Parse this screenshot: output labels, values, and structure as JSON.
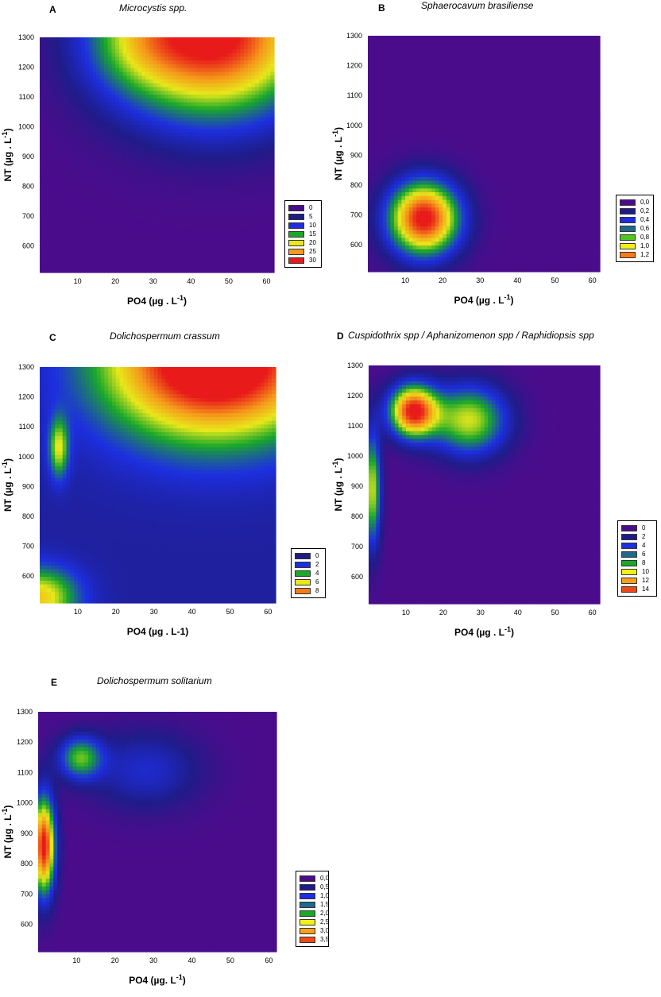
{
  "chart_data": [
    {
      "id": "A",
      "type": "heatmap",
      "letter": "A",
      "title": "Microcystis spp.",
      "xlabel": "PO4 (µg . L",
      "xlabel_sup": "-1",
      "xlabel_tail": ")",
      "ylabel": "NT (µg . L",
      "ylabel_sup": "-1",
      "ylabel_tail": ")",
      "xlim": [
        0,
        62
      ],
      "ylim": [
        510,
        1300
      ],
      "xticks": [
        "10",
        "20",
        "30",
        "40",
        "50",
        "60"
      ],
      "yticks": [
        "600",
        "700",
        "800",
        "900",
        "1000",
        "1100",
        "1200",
        "1300"
      ],
      "vmax": 30,
      "legend": [
        "0",
        "5",
        "10",
        "15",
        "20",
        "25",
        "30"
      ],
      "legend_colors": [
        "#4b0c8c",
        "#1f1c8a",
        "#1d2fe0",
        "#1aa82a",
        "#e8e81a",
        "#f59a1a",
        "#e81a1a"
      ],
      "hotspots": [
        {
          "x": 46,
          "y": 1310,
          "sx": 18,
          "sy": 190,
          "amp": 32
        },
        {
          "x": 25,
          "y": 1290,
          "sx": 10,
          "sy": 120,
          "amp": 6
        }
      ]
    },
    {
      "id": "B",
      "type": "heatmap",
      "letter": "B",
      "title": "Sphaerocavum brasiliense",
      "xlabel": "PO4 (µg . L",
      "xlabel_sup": "-1",
      "xlabel_tail": ")",
      "ylabel": "NT (µg . L",
      "ylabel_sup": "-1",
      "ylabel_tail": ")",
      "xlim": [
        0,
        62
      ],
      "ylim": [
        510,
        1300
      ],
      "xticks": [
        "10",
        "20",
        "30",
        "40",
        "50",
        "60"
      ],
      "yticks": [
        "600",
        "700",
        "800",
        "900",
        "1000",
        "1100",
        "1200",
        "1300"
      ],
      "vmax": 1.3,
      "legend": [
        "0,0",
        "0,2",
        "0,4",
        "0,6",
        "0,8",
        "1,0",
        "1,2"
      ],
      "legend_colors": [
        "#4b0c8c",
        "#1f1c8a",
        "#1d2fe0",
        "#1f6a8a",
        "#4bc81a",
        "#f0f01a",
        "#f57a1a"
      ],
      "hotspots": [
        {
          "x": 15,
          "y": 690,
          "sx": 6.5,
          "sy": 85,
          "amp": 1.35
        }
      ]
    },
    {
      "id": "C",
      "type": "heatmap",
      "letter": "C",
      "title": "Dolichospermum crassum",
      "xlabel": "PO4 (µg . L-1)",
      "xlabel_sup": "",
      "xlabel_tail": "",
      "ylabel": "NT (µg . L",
      "ylabel_sup": "-1",
      "ylabel_tail": ")",
      "xlim": [
        0,
        62
      ],
      "ylim": [
        510,
        1300
      ],
      "xticks": [
        "10",
        "20",
        "30",
        "40",
        "50",
        "60"
      ],
      "yticks": [
        "600",
        "700",
        "800",
        "900",
        "1000",
        "1100",
        "1200",
        "1300"
      ],
      "vmax": 9,
      "legend": [
        "0",
        "2",
        "4",
        "6",
        "8"
      ],
      "legend_colors": [
        "#1f1c8a",
        "#1d2fe0",
        "#1aa82a",
        "#e8e81a",
        "#f57a1a"
      ],
      "base": 1.2,
      "hotspots": [
        {
          "x": 46,
          "y": 1320,
          "sx": 20,
          "sy": 180,
          "amp": 10
        },
        {
          "x": 5,
          "y": 1030,
          "sx": 1.8,
          "sy": 70,
          "amp": 4.2
        },
        {
          "x": 0,
          "y": 530,
          "sx": 7,
          "sy": 70,
          "amp": 5
        }
      ]
    },
    {
      "id": "D",
      "type": "heatmap",
      "letter": "D",
      "title": "Cuspidothrix spp / Aphanizomenon spp / Raphidiopsis spp",
      "xlabel": "PO4 (µg . L",
      "xlabel_sup": "-1",
      "xlabel_tail": ")",
      "ylabel": "NT (µg . L",
      "ylabel_sup": "-1",
      "ylabel_tail": ")",
      "xlim": [
        0,
        62
      ],
      "ylim": [
        510,
        1300
      ],
      "xticks": [
        "10",
        "20",
        "30",
        "40",
        "50",
        "60"
      ],
      "yticks": [
        "600",
        "700",
        "800",
        "900",
        "1000",
        "1100",
        "1200",
        "1300"
      ],
      "vmax": 15,
      "legend": [
        "0",
        "2",
        "4",
        "6",
        "8",
        "10",
        "12",
        "14"
      ],
      "legend_colors": [
        "#4b0c8c",
        "#1f1c8a",
        "#1d2fe0",
        "#1f6a8a",
        "#1aa82a",
        "#f0f01a",
        "#f5a01a",
        "#f04a1a"
      ],
      "hotspots": [
        {
          "x": 12,
          "y": 1150,
          "sx": 4.5,
          "sy": 60,
          "amp": 15
        },
        {
          "x": 27,
          "y": 1120,
          "sx": 7,
          "sy": 80,
          "amp": 9
        },
        {
          "x": 1,
          "y": 890,
          "sx": 1.6,
          "sy": 130,
          "amp": 9
        }
      ]
    },
    {
      "id": "E",
      "type": "heatmap",
      "letter": "E",
      "title": "Dolichospermum solitarium",
      "xlabel": "PO4 (µg. L",
      "xlabel_sup": "-1",
      "xlabel_tail": ")",
      "ylabel": "NT (µg . L",
      "ylabel_sup": "-1",
      "ylabel_tail": ")",
      "xlim": [
        0,
        62
      ],
      "ylim": [
        510,
        1300
      ],
      "xticks": [
        "10",
        "20",
        "30",
        "40",
        "50",
        "60"
      ],
      "yticks": [
        "600",
        "700",
        "800",
        "900",
        "1000",
        "1100",
        "1200",
        "1300"
      ],
      "vmax": 3.8,
      "legend": [
        "0,0",
        "0,5",
        "1,0",
        "1,5",
        "2,0",
        "2,5",
        "3,0",
        "3,5"
      ],
      "legend_colors": [
        "#4b0c8c",
        "#1f1c8a",
        "#1d2fe0",
        "#1f6a8a",
        "#1aa82a",
        "#f0f01a",
        "#f5a01a",
        "#f04a1a"
      ],
      "hotspots": [
        {
          "x": 1.5,
          "y": 860,
          "sx": 2,
          "sy": 110,
          "amp": 3.9
        },
        {
          "x": 11,
          "y": 1150,
          "sx": 4,
          "sy": 50,
          "amp": 1.8
        },
        {
          "x": 28,
          "y": 1110,
          "sx": 10,
          "sy": 90,
          "amp": 0.8
        }
      ]
    }
  ]
}
